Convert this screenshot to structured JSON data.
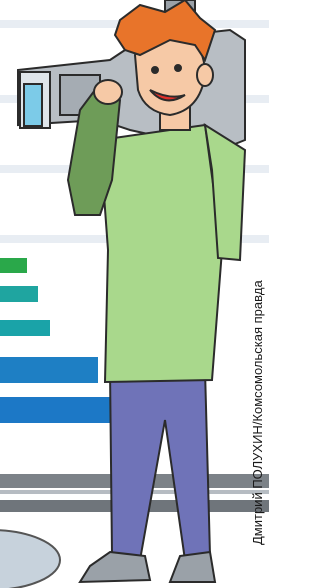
{
  "credit": "Дмитрий ПОЛУХИН/Комсомольская правда"
}
